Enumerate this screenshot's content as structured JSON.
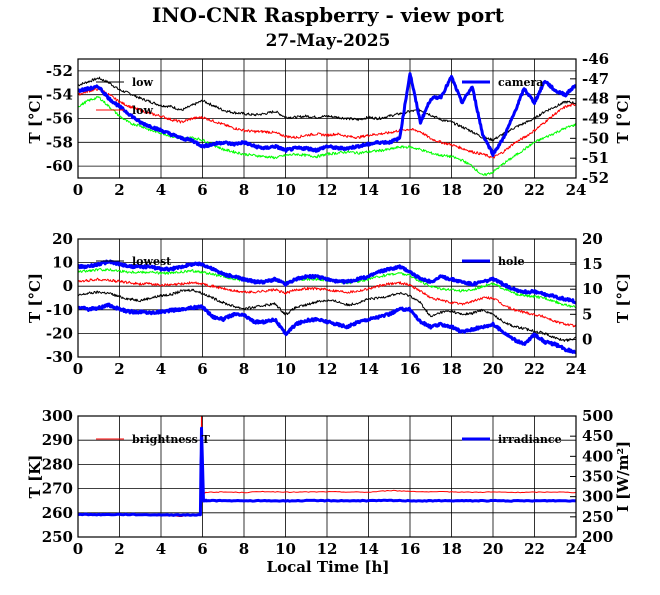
{
  "page": {
    "title": "INO-CNR Raspberry - view port",
    "date": "27-May-2025",
    "x_label": "Local Time [h]"
  },
  "chart_data": [
    {
      "type": "line",
      "panel": "top",
      "x": [
        0,
        0.5,
        1,
        1.5,
        2,
        2.5,
        3,
        3.5,
        4,
        4.5,
        5,
        5.5,
        6,
        6.5,
        7,
        7.5,
        8,
        8.5,
        9,
        9.5,
        10,
        10.5,
        11,
        11.5,
        12,
        12.5,
        13,
        13.5,
        14,
        14.5,
        15,
        15.5,
        16,
        16.5,
        17,
        17.5,
        18,
        18.5,
        19,
        19.5,
        20,
        20.5,
        21,
        21.5,
        22,
        22.5,
        23,
        23.5,
        24
      ],
      "xlim": [
        0,
        24
      ],
      "xticks": [
        "0",
        "2",
        "4",
        "6",
        "8",
        "10",
        "12",
        "14",
        "16",
        "18",
        "20",
        "22",
        "24"
      ],
      "y_left": {
        "label": "T [°C]",
        "lim": [
          -61,
          -51
        ],
        "ticks": [
          "-52",
          "-54",
          "-56",
          "-58",
          "-60"
        ]
      },
      "y_right": {
        "label": "T [°C]",
        "lim": [
          -52,
          -46
        ],
        "ticks": [
          "-46",
          "-47",
          "-48",
          "-49",
          "-50",
          "-51",
          "-52"
        ]
      },
      "series": [
        {
          "name": "low",
          "axis": "left",
          "color": "#000000",
          "values": [
            -53.2,
            -52.9,
            -52.6,
            -53.0,
            -53.6,
            -53.9,
            -54.3,
            -54.6,
            -54.9,
            -55.0,
            -55.3,
            -54.9,
            -54.5,
            -54.9,
            -55.3,
            -55.5,
            -55.6,
            -55.7,
            -55.6,
            -55.4,
            -55.9,
            -55.9,
            -55.8,
            -55.9,
            -55.8,
            -55.9,
            -56.0,
            -56.1,
            -55.9,
            -56.0,
            -55.8,
            -55.6,
            -55.4,
            -55.3,
            -55.7,
            -56.1,
            -56.3,
            -56.7,
            -57.1,
            -57.6,
            -57.8,
            -57.3,
            -56.8,
            -56.4,
            -56.0,
            -55.4,
            -55.0,
            -54.6,
            -54.7
          ]
        },
        {
          "name": "low",
          "axis": "left",
          "color": "#ff0000",
          "values": [
            -54.0,
            -53.7,
            -53.5,
            -54.0,
            -54.6,
            -55.0,
            -55.3,
            -55.6,
            -55.8,
            -56.1,
            -56.3,
            -56.0,
            -55.9,
            -56.2,
            -56.5,
            -56.8,
            -57.0,
            -57.1,
            -57.1,
            -57.2,
            -57.5,
            -57.6,
            -57.4,
            -57.3,
            -57.4,
            -57.3,
            -57.5,
            -57.6,
            -57.4,
            -57.3,
            -57.2,
            -57.0,
            -56.9,
            -57.1,
            -57.7,
            -58.0,
            -58.2,
            -58.5,
            -58.8,
            -59.0,
            -59.3,
            -58.8,
            -58.1,
            -57.6,
            -57.0,
            -56.3,
            -55.6,
            -55.0,
            -54.8
          ]
        },
        {
          "name": "",
          "axis": "left",
          "color": "#00ff00",
          "values": [
            -55.0,
            -54.5,
            -54.2,
            -55.0,
            -55.8,
            -56.4,
            -56.6,
            -57.0,
            -57.2,
            -57.5,
            -57.7,
            -57.6,
            -57.8,
            -58.2,
            -58.6,
            -58.8,
            -59.0,
            -59.1,
            -59.2,
            -59.3,
            -59.1,
            -59.0,
            -59.1,
            -59.2,
            -59.0,
            -58.9,
            -58.8,
            -58.9,
            -58.8,
            -58.7,
            -58.6,
            -58.4,
            -58.4,
            -58.6,
            -58.9,
            -59.1,
            -59.2,
            -59.5,
            -60.0,
            -60.8,
            -60.5,
            -59.8,
            -59.2,
            -58.6,
            -58.0,
            -57.6,
            -57.2,
            -56.8,
            -56.5
          ]
        },
        {
          "name": "camera",
          "axis": "right",
          "color": "#0000ff",
          "values": [
            -47.6,
            -47.5,
            -47.4,
            -48.0,
            -48.4,
            -48.8,
            -49.2,
            -49.4,
            -49.6,
            -49.8,
            -50.0,
            -50.1,
            -50.4,
            -50.3,
            -50.2,
            -50.3,
            -50.2,
            -50.4,
            -50.5,
            -50.4,
            -50.6,
            -50.5,
            -50.5,
            -50.6,
            -50.4,
            -50.5,
            -50.5,
            -50.4,
            -50.3,
            -50.2,
            -50.2,
            -50.0,
            -46.7,
            -49.2,
            -48.0,
            -47.9,
            -46.9,
            -48.2,
            -47.4,
            -49.8,
            -50.8,
            -50.0,
            -48.8,
            -47.5,
            -48.2,
            -47.1,
            -47.6,
            -47.8,
            -47.3
          ]
        }
      ]
    },
    {
      "type": "line",
      "panel": "middle",
      "x": [
        0,
        0.5,
        1,
        1.5,
        2,
        2.5,
        3,
        3.5,
        4,
        4.5,
        5,
        5.5,
        6,
        6.5,
        7,
        7.5,
        8,
        8.5,
        9,
        9.5,
        10,
        10.5,
        11,
        11.5,
        12,
        12.5,
        13,
        13.5,
        14,
        14.5,
        15,
        15.5,
        16,
        16.5,
        17,
        17.5,
        18,
        18.5,
        19,
        19.5,
        20,
        20.5,
        21,
        21.5,
        22,
        22.5,
        23,
        23.5,
        24
      ],
      "xlim": [
        0,
        24
      ],
      "xticks": [
        "0",
        "2",
        "4",
        "6",
        "8",
        "10",
        "12",
        "14",
        "16",
        "18",
        "20",
        "22",
        "24"
      ],
      "y_left": {
        "label": "T [°C]",
        "lim": [
          -30,
          20
        ],
        "ticks": [
          "20",
          "10",
          "0",
          "-10",
          "-20",
          "-30"
        ]
      },
      "y_right": {
        "label": "T [°C]",
        "lim": [
          -3.5,
          20
        ],
        "ticks": [
          "20",
          "15",
          "10",
          "5",
          "0"
        ]
      },
      "series": [
        {
          "name": "lowest",
          "axis": "left",
          "color": "#000000",
          "values": [
            -4.0,
            -3.0,
            -2.5,
            -3.0,
            -4.5,
            -5.5,
            -6.0,
            -5.0,
            -4.0,
            -3.5,
            -2.0,
            -1.5,
            -3.0,
            -5.0,
            -7.0,
            -8.5,
            -9.5,
            -9.0,
            -8.0,
            -7.5,
            -12.0,
            -9.0,
            -8.0,
            -6.5,
            -6.0,
            -6.5,
            -8.0,
            -7.0,
            -5.5,
            -5.0,
            -4.0,
            -3.0,
            -4.0,
            -7.0,
            -13.0,
            -11.0,
            -10.5,
            -12.0,
            -11.5,
            -10.0,
            -12.0,
            -15.0,
            -17.0,
            -18.0,
            -19.0,
            -20.0,
            -22.0,
            -23.0,
            -22.0
          ]
        },
        {
          "name": "",
          "axis": "left",
          "color": "#ff0000",
          "values": [
            2.0,
            2.5,
            3.0,
            2.5,
            2.0,
            1.5,
            1.0,
            1.0,
            0.5,
            0.5,
            1.0,
            1.5,
            1.0,
            0.0,
            -1.0,
            -2.0,
            -2.5,
            -2.5,
            -2.0,
            -1.5,
            -3.0,
            -1.5,
            -1.0,
            -1.0,
            -1.5,
            -2.0,
            -2.5,
            -2.0,
            -1.0,
            0.0,
            1.0,
            1.5,
            0.5,
            -2.0,
            -5.0,
            -6.0,
            -7.0,
            -7.5,
            -6.5,
            -5.0,
            -5.0,
            -8.0,
            -10.0,
            -11.0,
            -12.0,
            -13.0,
            -15.0,
            -16.0,
            -17.0
          ]
        },
        {
          "name": "",
          "axis": "left",
          "color": "#00ff00",
          "values": [
            6.0,
            6.5,
            7.0,
            7.0,
            6.5,
            6.0,
            6.0,
            6.0,
            5.5,
            5.5,
            6.0,
            6.5,
            6.0,
            5.0,
            4.0,
            3.0,
            2.5,
            2.0,
            2.0,
            2.5,
            1.5,
            2.5,
            3.0,
            3.0,
            2.5,
            2.0,
            1.5,
            2.0,
            3.0,
            4.0,
            5.0,
            5.5,
            4.5,
            2.0,
            0.0,
            -1.0,
            -1.5,
            -2.0,
            -1.5,
            0.0,
            1.0,
            -1.0,
            -3.0,
            -4.0,
            -4.5,
            -5.0,
            -6.5,
            -8.0,
            -9.0
          ]
        },
        {
          "name": "hole",
          "axis": "right",
          "color": "#0000ff",
          "values": [
            6.5,
            6.0,
            6.3,
            6.8,
            6.0,
            5.5,
            5.5,
            5.3,
            5.5,
            5.8,
            6.0,
            6.3,
            6.5,
            4.5,
            4.0,
            5.0,
            4.8,
            3.5,
            3.5,
            4.0,
            1.0,
            3.0,
            3.8,
            4.0,
            3.5,
            3.0,
            2.5,
            3.5,
            4.0,
            4.5,
            5.0,
            6.0,
            6.0,
            3.5,
            2.5,
            3.0,
            2.5,
            1.5,
            2.0,
            2.5,
            3.0,
            1.5,
            0.0,
            -1.0,
            1.0,
            -0.5,
            -1.0,
            -2.0,
            -2.5
          ]
        },
        {
          "name": "",
          "axis": "right",
          "color": "#0000ff",
          "values": [
            14.5,
            14.5,
            15.0,
            15.5,
            15.0,
            14.5,
            14.5,
            14.5,
            14.0,
            14.0,
            14.5,
            15.0,
            15.0,
            14.0,
            13.0,
            12.5,
            12.0,
            11.5,
            11.5,
            12.0,
            11.0,
            12.0,
            12.5,
            12.5,
            12.0,
            11.5,
            11.5,
            12.0,
            12.5,
            13.5,
            14.0,
            14.5,
            13.5,
            12.0,
            11.5,
            12.5,
            12.0,
            11.5,
            11.0,
            11.5,
            12.0,
            11.0,
            10.0,
            9.5,
            9.5,
            9.0,
            8.5,
            8.0,
            7.5
          ]
        }
      ]
    },
    {
      "type": "line",
      "panel": "bottom",
      "x": [
        0,
        1,
        2,
        3,
        4,
        5,
        5.9,
        5.95,
        6.05,
        6.2,
        7,
        8,
        9,
        10,
        11,
        12,
        13,
        14,
        15,
        16,
        17,
        18,
        19,
        20,
        21,
        22,
        23,
        24
      ],
      "xlim": [
        0,
        24
      ],
      "xticks": [
        "0",
        "2",
        "4",
        "6",
        "8",
        "10",
        "12",
        "14",
        "16",
        "18",
        "20",
        "22",
        "24"
      ],
      "xlabel": "Local Time [h]",
      "y_left": {
        "label": "T [K]",
        "lim": [
          250,
          300
        ],
        "ticks": [
          "300",
          "290",
          "280",
          "270",
          "260",
          "250"
        ]
      },
      "y_right": {
        "label": "I [W/m²]",
        "lim": [
          200,
          500
        ],
        "ticks": [
          "500",
          "450",
          "400",
          "350",
          "300",
          "250",
          "200"
        ]
      },
      "series": [
        {
          "name": "brightness T",
          "axis": "left",
          "color": "#ff0000",
          "values": [
            259.2,
            259.0,
            259.3,
            259.1,
            258.9,
            258.6,
            259.0,
            300.0,
            268.0,
            268.5,
            268.6,
            268.4,
            268.8,
            268.5,
            268.6,
            268.7,
            268.6,
            268.5,
            269.2,
            268.9,
            268.6,
            268.7,
            268.5,
            268.6,
            268.4,
            268.5,
            268.6,
            268.4
          ]
        },
        {
          "name": "irradiance",
          "axis": "right",
          "color": "#0000ff",
          "values": [
            256.0,
            255.5,
            256.0,
            255.5,
            255.0,
            254.5,
            255.0,
            470.0,
            290.0,
            290.5,
            290.0,
            289.5,
            290.0,
            289.5,
            290.0,
            290.2,
            289.8,
            290.0,
            290.5,
            290.0,
            289.6,
            290.0,
            289.8,
            290.0,
            289.5,
            289.8,
            290.0,
            289.6
          ]
        }
      ]
    }
  ]
}
